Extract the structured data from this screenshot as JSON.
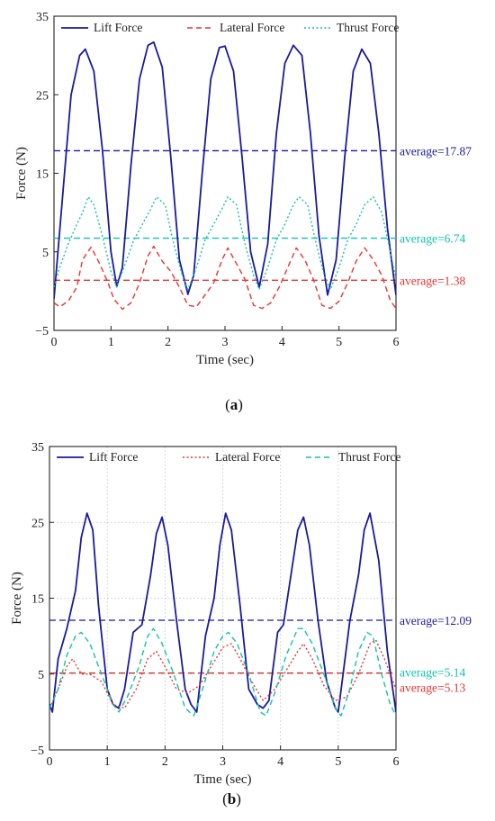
{
  "chart_data": [
    {
      "type": "line",
      "panel": "a",
      "caption": {
        "open": "(",
        "letter": "a",
        "close": ")"
      },
      "xlabel": "Time (sec)",
      "ylabel": "Force (N)",
      "xlim": [
        0,
        6
      ],
      "ylim": [
        -5,
        35
      ],
      "xticks": [
        0,
        1,
        2,
        3,
        4,
        5,
        6
      ],
      "yticks": [
        -5,
        5,
        15,
        25,
        35
      ],
      "grid": false,
      "legend_position": "top",
      "series": [
        {
          "name": "Lift Force",
          "color": "#1a1aa0",
          "style": "solid",
          "x": [
            0,
            0.15,
            0.3,
            0.45,
            0.55,
            0.7,
            0.85,
            1.0,
            1.1,
            1.2,
            1.35,
            1.5,
            1.65,
            1.75,
            1.9,
            2.05,
            2.2,
            2.35,
            2.45,
            2.6,
            2.75,
            2.9,
            3.0,
            3.15,
            3.3,
            3.45,
            3.6,
            3.75,
            3.9,
            4.05,
            4.2,
            4.35,
            4.5,
            4.65,
            4.8,
            4.95,
            5.1,
            5.25,
            5.4,
            5.55,
            5.7,
            5.85,
            6.0
          ],
          "y": [
            -1,
            12,
            25,
            30,
            30.8,
            28,
            18,
            5,
            0.6,
            3,
            16,
            27,
            31.3,
            31.7,
            28.5,
            17,
            4,
            -0.4,
            2,
            15,
            27,
            31,
            31.2,
            28,
            17,
            5,
            0.5,
            6,
            20,
            29,
            31.3,
            30,
            20,
            7,
            -0.5,
            4,
            17,
            28,
            30.8,
            29,
            20,
            8,
            -0.5
          ]
        },
        {
          "name": "Lateral Force",
          "color": "#ee3333",
          "style": "dashed",
          "x": [
            0,
            0.1,
            0.25,
            0.4,
            0.5,
            0.65,
            0.8,
            0.95,
            1.05,
            1.2,
            1.35,
            1.5,
            1.65,
            1.75,
            1.9,
            2.05,
            2.2,
            2.35,
            2.5,
            2.65,
            2.8,
            2.95,
            3.05,
            3.2,
            3.35,
            3.5,
            3.65,
            3.8,
            3.95,
            4.1,
            4.25,
            4.4,
            4.55,
            4.7,
            4.85,
            5.0,
            5.15,
            5.3,
            5.45,
            5.6,
            5.75,
            5.9,
            6.0
          ],
          "y": [
            -1.5,
            -2,
            -1.3,
            0.5,
            4,
            5.6,
            3.5,
            1,
            -1,
            -2.3,
            -1.5,
            1,
            4.5,
            5.7,
            3.8,
            2.5,
            0.5,
            -1.8,
            -2,
            -0.5,
            1,
            4,
            5.5,
            3.5,
            1.5,
            -1.8,
            -2.2,
            -1.5,
            0.5,
            3,
            5.5,
            4,
            1.5,
            -1.8,
            -2.2,
            -1.3,
            1,
            3.8,
            5.5,
            4,
            2,
            -1.2,
            -2.2
          ]
        },
        {
          "name": "Thrust Force",
          "color": "#10c4a8",
          "style": "dotted",
          "x": [
            0,
            0.1,
            0.25,
            0.4,
            0.5,
            0.6,
            0.7,
            0.85,
            1.0,
            1.1,
            1.25,
            1.4,
            1.55,
            1.7,
            1.8,
            1.95,
            2.1,
            2.25,
            2.35,
            2.5,
            2.65,
            2.8,
            2.95,
            3.05,
            3.2,
            3.35,
            3.5,
            3.6,
            3.75,
            3.9,
            4.05,
            4.2,
            4.3,
            4.45,
            4.6,
            4.75,
            4.85,
            5.0,
            5.15,
            5.3,
            5.45,
            5.6,
            5.75,
            5.9,
            6.0
          ],
          "y": [
            0.5,
            3,
            6,
            8.5,
            10,
            12,
            11,
            7,
            2.5,
            0.5,
            3.5,
            6.5,
            8.5,
            10.5,
            12,
            11,
            6,
            2,
            0.2,
            3,
            6.5,
            8.5,
            10.5,
            12,
            11,
            6,
            2,
            0.2,
            3,
            6.5,
            8.5,
            11,
            12,
            11,
            6,
            1.8,
            0.2,
            3,
            6.5,
            8.5,
            11,
            12,
            10,
            5,
            1.5
          ]
        }
      ],
      "averages": [
        {
          "label": "average=17.87",
          "value": 17.87,
          "color": "#1a1aa0"
        },
        {
          "label": "average=6.74",
          "value": 6.74,
          "color": "#10c4a8"
        },
        {
          "label": "average=1.38",
          "value": 1.38,
          "color": "#ee3333"
        }
      ]
    },
    {
      "type": "line",
      "panel": "b",
      "caption": {
        "open": "(",
        "letter": "b",
        "close": ")"
      },
      "xlabel": "Time (sec)",
      "ylabel": "Force (N)",
      "xlim": [
        0,
        6
      ],
      "ylim": [
        -5,
        35
      ],
      "xticks": [
        0,
        1,
        2,
        3,
        4,
        5,
        6
      ],
      "yticks": [
        -5,
        5,
        15,
        25,
        35
      ],
      "grid": true,
      "legend_position": "top",
      "series": [
        {
          "name": "Lift Force",
          "color": "#1a1aa0",
          "style": "solid",
          "x": [
            0,
            0.05,
            0.15,
            0.3,
            0.45,
            0.55,
            0.65,
            0.75,
            0.85,
            1.0,
            1.1,
            1.2,
            1.3,
            1.45,
            1.6,
            1.75,
            1.85,
            1.95,
            2.05,
            2.2,
            2.35,
            2.45,
            2.55,
            2.7,
            2.85,
            2.95,
            3.05,
            3.15,
            3.3,
            3.45,
            3.6,
            3.7,
            3.8,
            3.95,
            4.05,
            4.2,
            4.3,
            4.4,
            4.5,
            4.65,
            4.8,
            4.95,
            5.0,
            5.1,
            5.2,
            5.35,
            5.45,
            5.55,
            5.7,
            5.85,
            6.0
          ],
          "y": [
            1,
            0,
            7,
            11,
            16,
            23,
            26.2,
            24,
            14,
            3,
            1,
            0.5,
            3,
            10.5,
            11.5,
            18,
            23.5,
            25.7,
            22,
            12,
            3,
            1,
            0,
            10,
            15,
            22,
            26.2,
            24,
            14,
            3,
            1,
            0.5,
            1.5,
            10.5,
            11.5,
            19,
            24,
            25.7,
            22,
            12,
            4,
            0.5,
            0,
            6,
            12,
            18,
            24,
            26.2,
            20,
            8,
            0
          ]
        },
        {
          "name": "Lateral Force",
          "color": "#ee3333",
          "style": "dotted",
          "x": [
            0,
            0.15,
            0.3,
            0.4,
            0.55,
            0.7,
            0.9,
            1.1,
            1.3,
            1.5,
            1.7,
            1.85,
            2.0,
            2.2,
            2.4,
            2.6,
            2.8,
            3.0,
            3.15,
            3.3,
            3.5,
            3.7,
            3.9,
            4.1,
            4.3,
            4.4,
            4.55,
            4.75,
            4.95,
            5.15,
            5.35,
            5.55,
            5.65,
            5.8,
            5.95,
            6.0
          ],
          "y": [
            0.5,
            3,
            6,
            7,
            5,
            5,
            4,
            1,
            0.5,
            3,
            7,
            8,
            6,
            3,
            2.5,
            3.5,
            6,
            8.5,
            9,
            7,
            4,
            1.5,
            3,
            5.5,
            8,
            9,
            7,
            3.5,
            1.5,
            2,
            5,
            9,
            9.5,
            7,
            4,
            3
          ]
        },
        {
          "name": "Thrust Force",
          "color": "#10c4a8",
          "style": "dashed",
          "x": [
            0,
            0.15,
            0.3,
            0.45,
            0.55,
            0.7,
            0.9,
            1.1,
            1.2,
            1.35,
            1.55,
            1.7,
            1.8,
            1.95,
            2.15,
            2.35,
            2.5,
            2.65,
            2.85,
            3.0,
            3.1,
            3.25,
            3.45,
            3.65,
            3.75,
            3.9,
            4.1,
            4.3,
            4.4,
            4.55,
            4.75,
            4.95,
            5.05,
            5.2,
            5.35,
            5.5,
            5.6,
            5.75,
            5.9,
            6.0
          ],
          "y": [
            0.5,
            3,
            7.5,
            10,
            10.5,
            9,
            5,
            1,
            0,
            2,
            6,
            10,
            11,
            9,
            5,
            0.5,
            -0.5,
            3,
            8,
            10,
            10.5,
            9,
            5,
            0,
            -0.5,
            2.5,
            7.5,
            11,
            11,
            9,
            5,
            0.5,
            -0.5,
            3,
            8,
            10.5,
            10,
            5,
            1,
            -0.5
          ]
        }
      ],
      "averages": [
        {
          "label": "average=12.09",
          "value": 12.09,
          "color": "#1a1aa0"
        },
        {
          "label": "average=5.14",
          "value": 5.14,
          "color": "#10c4a8"
        },
        {
          "label": "average=5.13",
          "value": 5.13,
          "color": "#ee3333"
        }
      ]
    }
  ],
  "colors": {
    "axis": "#222222",
    "grid": "#cfcfcf"
  }
}
